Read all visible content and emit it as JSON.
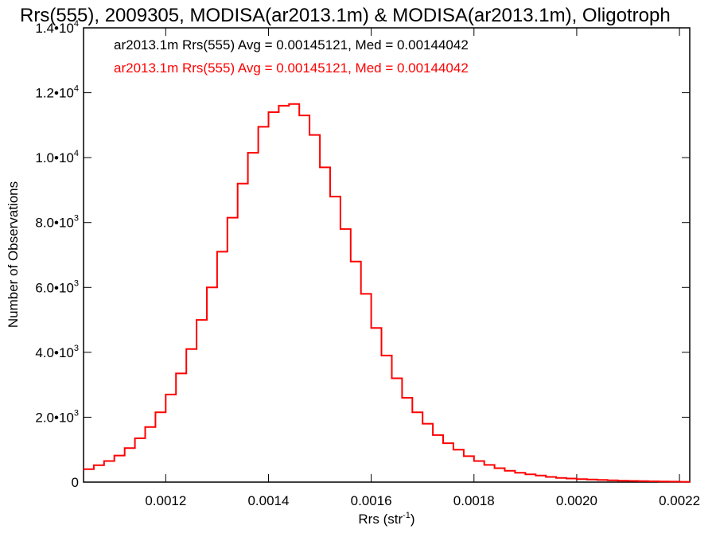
{
  "chart_data": {
    "type": "histogram-step",
    "title": "Rrs(555), 2009305, MODISA(ar2013.1m) & MODISA(ar2013.1m), Oligotroph",
    "xlabel_main": "Rrs (str",
    "xlabel_sup": "-1",
    "xlabel_end": ")",
    "ylabel": "Number of Observations",
    "xlim": [
      0.00104,
      0.00222
    ],
    "ylim": [
      0,
      14000
    ],
    "x_ticks": [
      {
        "value": 0.0012,
        "label": "0.0012"
      },
      {
        "value": 0.0014,
        "label": "0.0014"
      },
      {
        "value": 0.0016,
        "label": "0.0016"
      },
      {
        "value": 0.0018,
        "label": "0.0018"
      },
      {
        "value": 0.002,
        "label": "0.0020"
      },
      {
        "value": 0.0022,
        "label": "0.0022"
      }
    ],
    "y_ticks": [
      {
        "value": 0,
        "mant": "0",
        "exp": ""
      },
      {
        "value": 2000,
        "mant": "2.0•10",
        "exp": "3"
      },
      {
        "value": 4000,
        "mant": "4.0•10",
        "exp": "3"
      },
      {
        "value": 6000,
        "mant": "6.0•10",
        "exp": "3"
      },
      {
        "value": 8000,
        "mant": "8.0•10",
        "exp": "3"
      },
      {
        "value": 10000,
        "mant": "1.0•10",
        "exp": "4"
      },
      {
        "value": 12000,
        "mant": "1.2•10",
        "exp": "4"
      },
      {
        "value": 14000,
        "mant": "1.4•10",
        "exp": "4"
      }
    ],
    "legend": [
      {
        "text": "ar2013.1m Rrs(555) Avg = 0.00145121, Med = 0.00144042",
        "color": "#000000"
      },
      {
        "text": "ar2013.1m Rrs(555) Avg = 0.00145121, Med = 0.00144042",
        "color": "#ff0000"
      }
    ],
    "series": [
      {
        "color": "#ff0000",
        "points": [
          [
            0.00104,
            400
          ],
          [
            0.00106,
            520
          ],
          [
            0.00108,
            650
          ],
          [
            0.0011,
            820
          ],
          [
            0.00112,
            1050
          ],
          [
            0.00114,
            1350
          ],
          [
            0.00116,
            1700
          ],
          [
            0.00118,
            2150
          ],
          [
            0.0012,
            2700
          ],
          [
            0.00122,
            3350
          ],
          [
            0.00124,
            4100
          ],
          [
            0.00126,
            5000
          ],
          [
            0.00128,
            6000
          ],
          [
            0.0013,
            7100
          ],
          [
            0.00132,
            8150
          ],
          [
            0.00134,
            9200
          ],
          [
            0.00136,
            10150
          ],
          [
            0.00138,
            10950
          ],
          [
            0.0014,
            11400
          ],
          [
            0.00142,
            11600
          ],
          [
            0.00144,
            11650
          ],
          [
            0.00146,
            11300
          ],
          [
            0.00148,
            10700
          ],
          [
            0.0015,
            9700
          ],
          [
            0.00152,
            8800
          ],
          [
            0.00154,
            7800
          ],
          [
            0.00156,
            6800
          ],
          [
            0.00158,
            5800
          ],
          [
            0.0016,
            4750
          ],
          [
            0.00162,
            3900
          ],
          [
            0.00164,
            3200
          ],
          [
            0.00166,
            2600
          ],
          [
            0.00168,
            2150
          ],
          [
            0.0017,
            1800
          ],
          [
            0.00172,
            1450
          ],
          [
            0.00174,
            1200
          ],
          [
            0.00176,
            1000
          ],
          [
            0.00178,
            800
          ],
          [
            0.0018,
            650
          ],
          [
            0.00182,
            530
          ],
          [
            0.00184,
            430
          ],
          [
            0.00186,
            350
          ],
          [
            0.00188,
            290
          ],
          [
            0.0019,
            240
          ],
          [
            0.00192,
            200
          ],
          [
            0.00194,
            160
          ],
          [
            0.00196,
            130
          ],
          [
            0.00198,
            110
          ],
          [
            0.002,
            90
          ],
          [
            0.00202,
            80
          ],
          [
            0.00204,
            65
          ],
          [
            0.00206,
            55
          ],
          [
            0.00208,
            45
          ],
          [
            0.0021,
            38
          ],
          [
            0.00212,
            30
          ],
          [
            0.00214,
            25
          ],
          [
            0.00216,
            20
          ],
          [
            0.00218,
            15
          ],
          [
            0.0022,
            10
          ],
          [
            0.00222,
            8
          ]
        ]
      }
    ]
  }
}
